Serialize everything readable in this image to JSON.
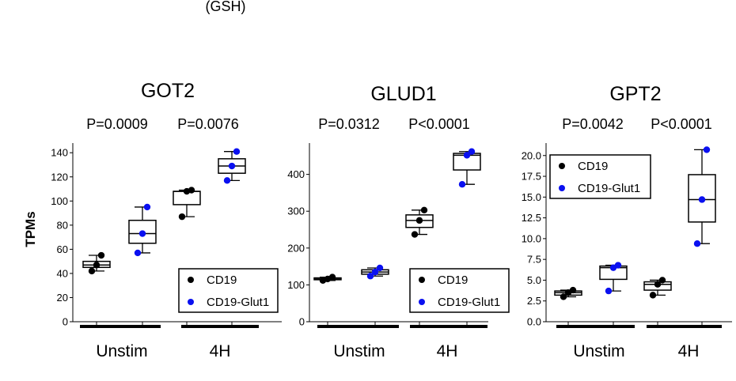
{
  "header_fragment": "(GSH)",
  "colors": {
    "cd19": "#000000",
    "glut1": "#0a10f0"
  },
  "chart_data": [
    {
      "type": "box",
      "title": "GOT2",
      "ylabel": "TPMs",
      "ylim": [
        0,
        148
      ],
      "yticks": [
        "0",
        "20",
        "40",
        "60",
        "80",
        "100",
        "120",
        "140"
      ],
      "ytick_values": [
        0,
        20,
        40,
        60,
        80,
        100,
        120,
        140
      ],
      "groups": [
        "Unstim",
        "4H"
      ],
      "pvalues": [
        "P=0.0009",
        "P=0.0076"
      ],
      "legend_entries": [
        "CD19",
        "CD19-Glut1"
      ],
      "legend_position": "bottom-right",
      "boxes": [
        {
          "series": "CD19",
          "group": "Unstim",
          "whislo": 42,
          "q1": 45,
          "med": 47,
          "q3": 50,
          "whishi": 55,
          "points": [
            42,
            47,
            55
          ]
        },
        {
          "series": "CD19-Glut1",
          "group": "Unstim",
          "whislo": 57,
          "q1": 65,
          "med": 73,
          "q3": 84,
          "whishi": 95,
          "points": [
            57,
            73,
            95
          ]
        },
        {
          "series": "CD19",
          "group": "4H",
          "whislo": 87,
          "q1": 97,
          "med": 108,
          "q3": 108,
          "whishi": 109,
          "points": [
            87,
            108,
            109
          ]
        },
        {
          "series": "CD19-Glut1",
          "group": "4H",
          "whislo": 117,
          "q1": 123,
          "med": 129,
          "q3": 135,
          "whishi": 141,
          "points": [
            117,
            129,
            141
          ]
        }
      ]
    },
    {
      "type": "box",
      "title": "GLUD1",
      "ylim": [
        0,
        485
      ],
      "yticks": [
        "0",
        "100",
        "200",
        "300",
        "400"
      ],
      "ytick_values": [
        0,
        100,
        200,
        300,
        400
      ],
      "groups": [
        "Unstim",
        "4H"
      ],
      "pvalues": [
        "P=0.0312",
        "P<0.0001"
      ],
      "legend_entries": [
        "CD19",
        "CD19-Glut1"
      ],
      "legend_position": "bottom-right",
      "boxes": [
        {
          "series": "CD19",
          "group": "Unstim",
          "whislo": 112,
          "q1": 114,
          "med": 116,
          "q3": 119,
          "whishi": 121,
          "points": [
            112,
            116,
            121
          ]
        },
        {
          "series": "CD19-Glut1",
          "group": "Unstim",
          "whislo": 124,
          "q1": 129,
          "med": 135,
          "q3": 141,
          "whishi": 146,
          "points": [
            124,
            135,
            146
          ]
        },
        {
          "series": "CD19",
          "group": "4H",
          "whislo": 237,
          "q1": 256,
          "med": 275,
          "q3": 290,
          "whishi": 303,
          "points": [
            237,
            275,
            303
          ]
        },
        {
          "series": "CD19-Glut1",
          "group": "4H",
          "whislo": 373,
          "q1": 412,
          "med": 452,
          "q3": 457,
          "whishi": 462,
          "points": [
            373,
            452,
            462
          ]
        }
      ]
    },
    {
      "type": "box",
      "title": "GPT2",
      "ylim": [
        0,
        21.5
      ],
      "yticks": [
        "0.0",
        "2.5",
        "5.0",
        "7.5",
        "10.0",
        "12.5",
        "15.0",
        "17.5",
        "20.0"
      ],
      "ytick_values": [
        0,
        2.5,
        5,
        7.5,
        10,
        12.5,
        15,
        17.5,
        20
      ],
      "groups": [
        "Unstim",
        "4H"
      ],
      "pvalues": [
        "P=0.0042",
        "P<0.0001"
      ],
      "legend_entries": [
        "CD19",
        "CD19-Glut1"
      ],
      "legend_position": "top-left",
      "boxes": [
        {
          "series": "CD19",
          "group": "Unstim",
          "whislo": 3.0,
          "q1": 3.2,
          "med": 3.5,
          "q3": 3.7,
          "whishi": 3.8,
          "points": [
            3.0,
            3.5,
            3.8
          ]
        },
        {
          "series": "CD19-Glut1",
          "group": "Unstim",
          "whislo": 3.7,
          "q1": 5.1,
          "med": 6.5,
          "q3": 6.7,
          "whishi": 6.8,
          "points": [
            3.7,
            6.5,
            6.8
          ]
        },
        {
          "series": "CD19",
          "group": "4H",
          "whislo": 3.2,
          "q1": 3.8,
          "med": 4.5,
          "q3": 4.8,
          "whishi": 5.0,
          "points": [
            3.2,
            4.5,
            5.0
          ]
        },
        {
          "series": "CD19-Glut1",
          "group": "4H",
          "whislo": 9.4,
          "q1": 12.0,
          "med": 14.7,
          "q3": 17.7,
          "whishi": 20.7,
          "points": [
            9.4,
            14.7,
            20.7
          ]
        }
      ]
    }
  ]
}
